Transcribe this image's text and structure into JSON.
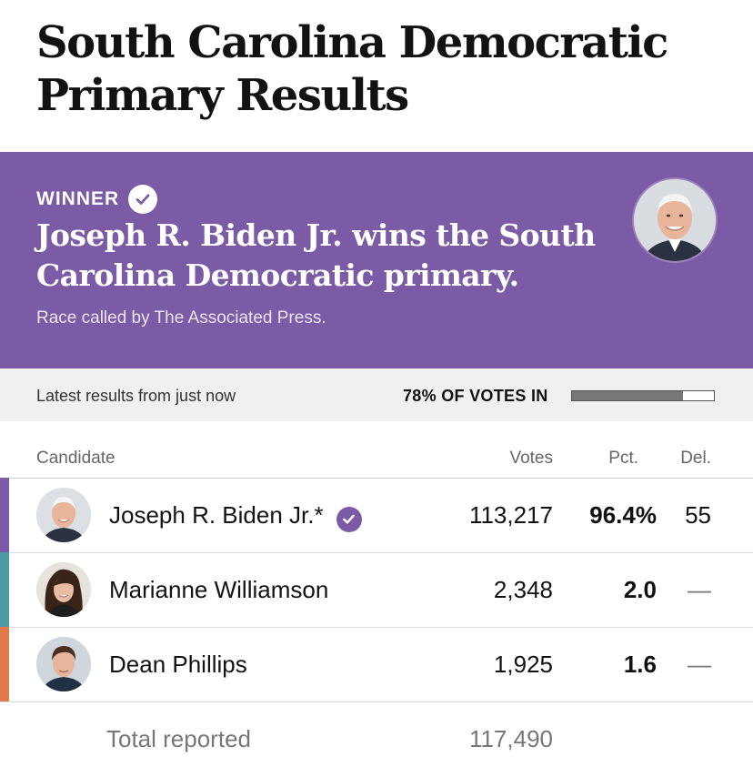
{
  "title": "South Carolina Democratic Primary Results",
  "banner": {
    "winner_label": "WINNER",
    "headline": "Joseph R. Biden Jr. wins the South Carolina Democratic primary.",
    "called_by": "Race called by The Associated Press.",
    "color": "#7b5aa6"
  },
  "status": {
    "latest": "Latest results from just now",
    "votes_in_label": "78% OF VOTES IN",
    "reporting_fraction": 0.78
  },
  "table": {
    "headers": {
      "candidate": "Candidate",
      "votes": "Votes",
      "pct": "Pct.",
      "del": "Del."
    },
    "rows": [
      {
        "name": "Joseph R. Biden Jr.*",
        "votes": "113,217",
        "pct": "96.4%",
        "del": "55",
        "winner": true,
        "color": "#7b5aa6",
        "icon": "biden-avatar"
      },
      {
        "name": "Marianne Williamson",
        "votes": "2,348",
        "pct": "2.0",
        "del": "—",
        "winner": false,
        "color": "#4b9aa8",
        "icon": "williamson-avatar"
      },
      {
        "name": "Dean Phillips",
        "votes": "1,925",
        "pct": "1.6",
        "del": "—",
        "winner": false,
        "color": "#e07a4a",
        "icon": "phillips-avatar"
      }
    ],
    "total": {
      "label": "Total reported",
      "votes": "117,490"
    }
  }
}
